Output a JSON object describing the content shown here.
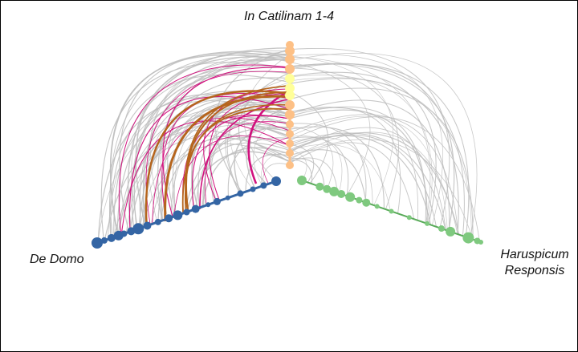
{
  "labels": {
    "top": "In Catilinam 1-4",
    "left": "De Domo",
    "right_line1": "Haruspicum",
    "right_line2": "Responsis"
  },
  "colors": {
    "left_axis": "#3465a4",
    "right_axis": "#5aab5a",
    "right_nodes": "#7fc97f",
    "top_nodes": "#fdc086",
    "top_highlight": "#ffff99",
    "edge_default": "#bdbdbd",
    "edge_magenta": "#d1127e",
    "edge_brown": "#b5651d"
  },
  "axes": [
    {
      "id": "top",
      "name": "In Catilinam 1-4"
    },
    {
      "id": "left",
      "name": "De Domo"
    },
    {
      "id": "right",
      "name": "Haruspicum Responsis"
    }
  ]
}
